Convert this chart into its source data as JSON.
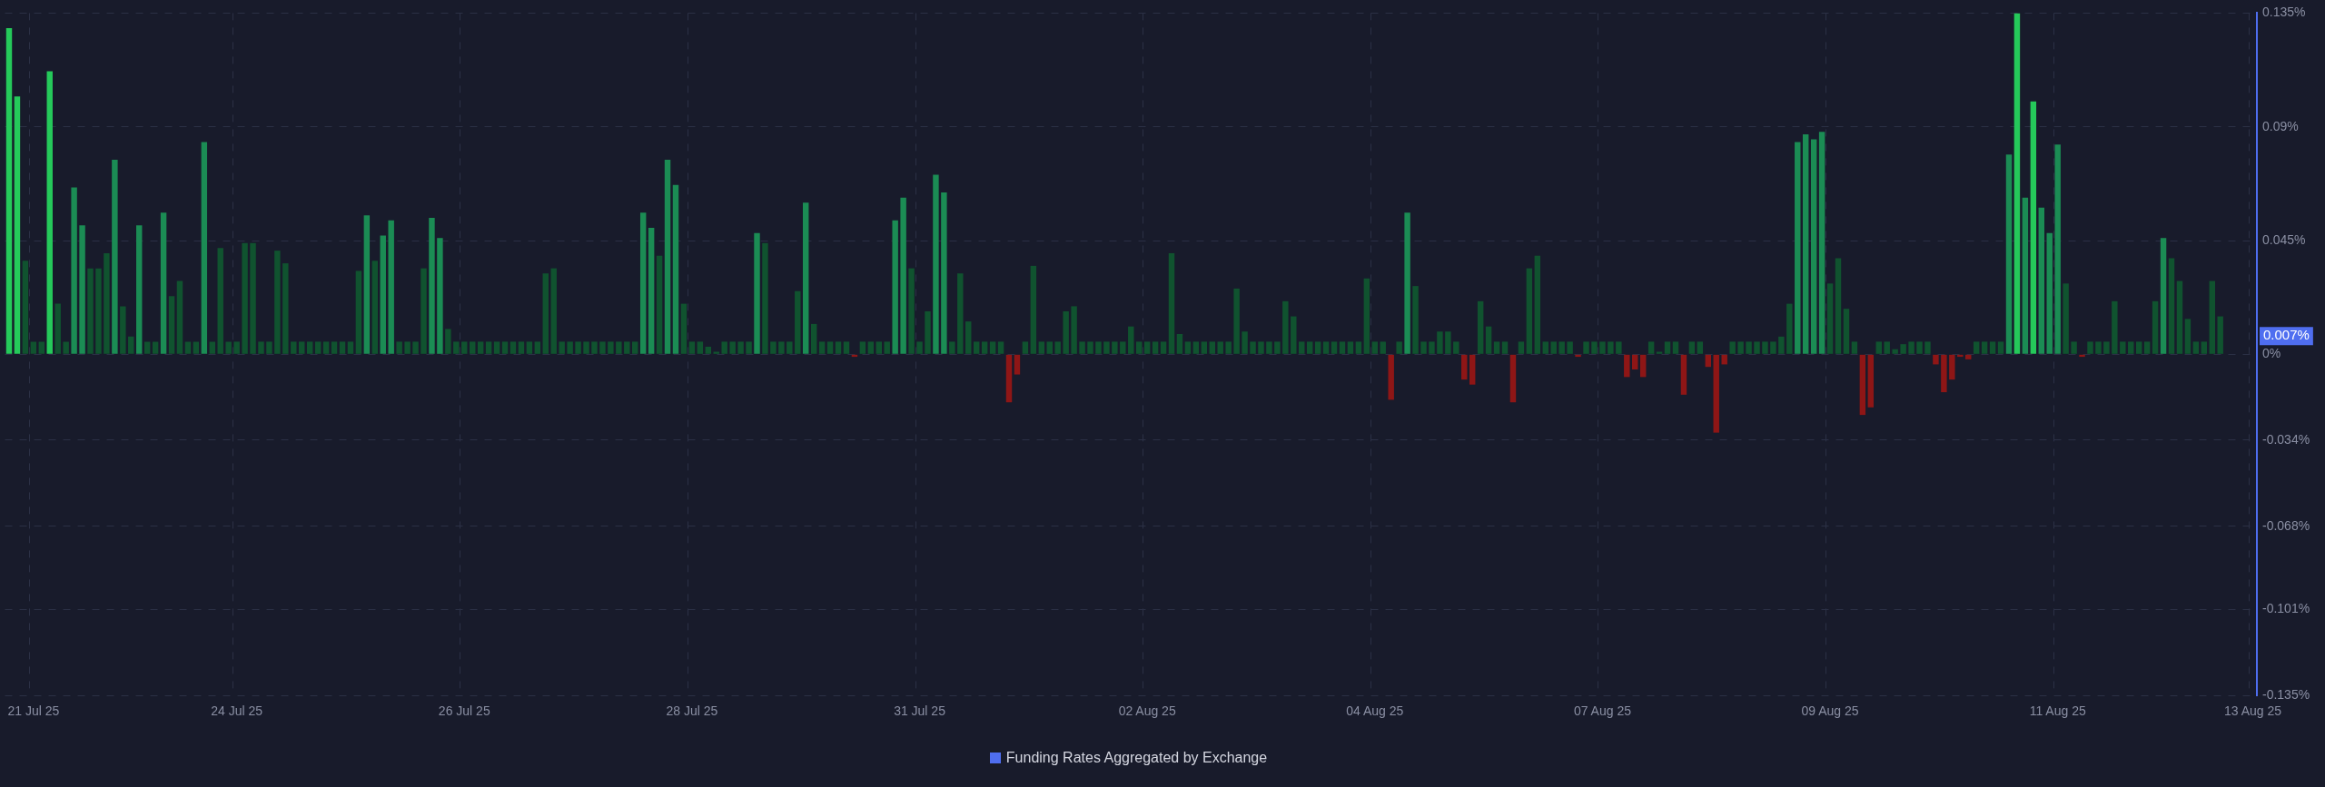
{
  "chart_data": {
    "type": "bar",
    "categories": [
      null,
      null,
      null,
      "21 Jul 25",
      null,
      null,
      null,
      null,
      null,
      null,
      null,
      null,
      null,
      null,
      null,
      null,
      null,
      null,
      null,
      null,
      null,
      null,
      null,
      null,
      null,
      null,
      null,
      null,
      "24 Jul 25",
      null,
      null,
      null,
      null,
      null,
      null,
      null,
      null,
      null,
      null,
      null,
      null,
      null,
      null,
      null,
      null,
      null,
      null,
      null,
      null,
      null,
      null,
      null,
      null,
      null,
      null,
      null,
      "26 Jul 25",
      null,
      null,
      null,
      null,
      null,
      null,
      null,
      null,
      null,
      null,
      null,
      null,
      null,
      null,
      null,
      null,
      null,
      null,
      null,
      null,
      null,
      null,
      null,
      null,
      null,
      null,
      null,
      "28 Jul 25",
      null,
      null,
      null,
      null,
      null,
      null,
      null,
      null,
      null,
      null,
      null,
      null,
      null,
      null,
      null,
      null,
      null,
      null,
      null,
      null,
      null,
      null,
      null,
      null,
      null,
      null,
      null,
      "31 Jul 25",
      null,
      null,
      null,
      null,
      null,
      null,
      null,
      null,
      null,
      null,
      null,
      null,
      null,
      null,
      null,
      null,
      null,
      null,
      null,
      null,
      null,
      null,
      null,
      null,
      null,
      null,
      null,
      "02 Aug 25",
      null,
      null,
      null,
      null,
      null,
      null,
      null,
      null,
      null,
      null,
      null,
      null,
      null,
      null,
      null,
      null,
      null,
      null,
      null,
      null,
      null,
      null,
      null,
      null,
      null,
      null,
      null,
      "04 Aug 25",
      null,
      null,
      null,
      null,
      null,
      null,
      null,
      null,
      null,
      null,
      null,
      null,
      null,
      null,
      null,
      null,
      null,
      null,
      null,
      null,
      null,
      null,
      null,
      null,
      null,
      null,
      null,
      "07 Aug 25",
      null,
      null,
      null,
      null,
      null,
      null,
      null,
      null,
      null,
      null,
      null,
      null,
      null,
      null,
      null,
      null,
      null,
      null,
      null,
      null,
      null,
      null,
      null,
      null,
      null,
      null,
      null,
      "09 Aug 25",
      null,
      null,
      null,
      null,
      null,
      null,
      null,
      null,
      null,
      null,
      null,
      null,
      null,
      null,
      null,
      null,
      null,
      null,
      null,
      null,
      null,
      null,
      null,
      null,
      null,
      null,
      null,
      "11 Aug 25",
      null,
      null,
      null,
      null,
      null,
      null,
      null,
      null,
      null,
      null,
      null,
      null,
      null,
      null,
      null,
      null,
      null,
      null,
      null,
      null,
      null,
      null,
      null,
      "13 Aug 25"
    ],
    "series": [
      {
        "name": "Funding Rates Aggregated by Exchange",
        "color": "#4f6ef0",
        "values": [
          0.129,
          0.102,
          0.037,
          0.005,
          0.005,
          0.112,
          0.02,
          0.005,
          0.066,
          0.051,
          0.034,
          0.034,
          0.04,
          0.077,
          0.019,
          0.007,
          0.051,
          0.005,
          0.005,
          0.056,
          0.023,
          0.029,
          0.005,
          0.005,
          0.084,
          0.005,
          0.042,
          0.005,
          0.005,
          0.044,
          0.044,
          0.005,
          0.005,
          0.041,
          0.036,
          0.005,
          0.005,
          0.005,
          0.005,
          0.005,
          0.005,
          0.005,
          0.005,
          0.033,
          0.055,
          0.037,
          0.047,
          0.053,
          0.005,
          0.005,
          0.005,
          0.034,
          0.054,
          0.046,
          0.01,
          0.005,
          0.005,
          0.005,
          0.005,
          0.005,
          0.005,
          0.005,
          0.005,
          0.005,
          0.005,
          0.005,
          0.032,
          0.034,
          0.005,
          0.005,
          0.005,
          0.005,
          0.005,
          0.005,
          0.005,
          0.005,
          0.005,
          0.005,
          0.056,
          0.05,
          0.039,
          0.077,
          0.067,
          0.02,
          0.005,
          0.005,
          0.003,
          0.001,
          0.005,
          0.005,
          0.005,
          0.005,
          0.048,
          0.044,
          0.005,
          0.005,
          0.005,
          0.025,
          0.06,
          0.012,
          0.005,
          0.005,
          0.005,
          0.005,
          -0.001,
          0.005,
          0.005,
          0.005,
          0.005,
          0.053,
          0.062,
          0.034,
          0.005,
          0.017,
          0.071,
          0.064,
          0.005,
          0.032,
          0.013,
          0.005,
          0.005,
          0.005,
          0.005,
          -0.019,
          -0.008,
          0.005,
          0.035,
          0.005,
          0.005,
          0.005,
          0.017,
          0.019,
          0.005,
          0.005,
          0.005,
          0.005,
          0.005,
          0.005,
          0.011,
          0.005,
          0.005,
          0.005,
          0.005,
          0.04,
          0.008,
          0.005,
          0.005,
          0.005,
          0.005,
          0.005,
          0.005,
          0.026,
          0.009,
          0.005,
          0.005,
          0.005,
          0.005,
          0.021,
          0.015,
          0.005,
          0.005,
          0.005,
          0.005,
          0.005,
          0.005,
          0.005,
          0.005,
          0.03,
          0.005,
          0.005,
          -0.018,
          0.005,
          0.056,
          0.027,
          0.005,
          0.005,
          0.009,
          0.009,
          0.005,
          -0.01,
          -0.012,
          0.021,
          0.011,
          0.005,
          0.005,
          -0.019,
          0.005,
          0.034,
          0.039,
          0.005,
          0.005,
          0.005,
          0.005,
          -0.001,
          0.005,
          0.005,
          0.005,
          0.005,
          0.005,
          -0.009,
          -0.006,
          -0.009,
          0.005,
          0.001,
          0.005,
          0.005,
          -0.016,
          0.005,
          0.005,
          -0.005,
          -0.031,
          -0.004,
          0.005,
          0.005,
          0.005,
          0.005,
          0.005,
          0.005,
          0.007,
          0.02,
          0.084,
          0.087,
          0.085,
          0.088,
          0.028,
          0.038,
          0.018,
          0.005,
          -0.024,
          -0.021,
          0.005,
          0.005,
          0.002,
          0.004,
          0.005,
          0.005,
          0.005,
          -0.004,
          -0.015,
          -0.01,
          -0.001,
          -0.002,
          0.005,
          0.005,
          0.005,
          0.005,
          0.079,
          0.135,
          0.062,
          0.1,
          0.058,
          0.048,
          0.083,
          0.028,
          0.005,
          -0.001,
          0.005,
          0.005,
          0.005,
          0.021,
          0.005,
          0.005,
          0.005,
          0.005,
          0.021,
          0.046,
          0.038,
          0.029,
          0.014,
          0.005,
          0.005,
          0.029,
          0.015,
          null,
          null,
          null,
          null
        ],
        "colors": [
          "#25c95a",
          "#25c95a",
          "#10532f",
          "#10532f",
          "#10532f",
          "#25c95a",
          "#10532f",
          "#10532f",
          "#1b8c54",
          "#1b8c54",
          "#10532f",
          "#10532f",
          "#10532f",
          "#1b8c54",
          "#10532f",
          "#10532f",
          "#1b8c54",
          "#10532f",
          "#10532f",
          "#1b8c54",
          "#10532f",
          "#10532f",
          "#10532f",
          "#10532f",
          "#1b8c54",
          "#10532f",
          "#10532f",
          "#10532f",
          "#10532f",
          "#10532f",
          "#10532f",
          "#10532f",
          "#10532f",
          "#10532f",
          "#10532f",
          "#10532f",
          "#10532f",
          "#10532f",
          "#10532f",
          "#10532f",
          "#10532f",
          "#10532f",
          "#10532f",
          "#10532f",
          "#1b8c54",
          "#10532f",
          "#1b8c54",
          "#1b8c54",
          "#10532f",
          "#10532f",
          "#10532f",
          "#10532f",
          "#1b8c54",
          "#1b8c54",
          "#10532f",
          "#10532f",
          "#10532f",
          "#10532f",
          "#10532f",
          "#10532f",
          "#10532f",
          "#10532f",
          "#10532f",
          "#10532f",
          "#10532f",
          "#10532f",
          "#10532f",
          "#10532f",
          "#10532f",
          "#10532f",
          "#10532f",
          "#10532f",
          "#10532f",
          "#10532f",
          "#10532f",
          "#10532f",
          "#10532f",
          "#10532f",
          "#1b8c54",
          "#1b8c54",
          "#10532f",
          "#1b8c54",
          "#1b8c54",
          "#10532f",
          "#10532f",
          "#10532f",
          "#10532f",
          "#10532f",
          "#10532f",
          "#10532f",
          "#10532f",
          "#10532f",
          "#1b8c54",
          "#10532f",
          "#10532f",
          "#10532f",
          "#10532f",
          "#10532f",
          "#1b8c54",
          "#10532f",
          "#10532f",
          "#10532f",
          "#10532f",
          "#10532f",
          "#8e1616",
          "#10532f",
          "#10532f",
          "#10532f",
          "#10532f",
          "#1b8c54",
          "#1b8c54",
          "#10532f",
          "#10532f",
          "#10532f",
          "#1b8c54",
          "#1b8c54",
          "#10532f",
          "#10532f",
          "#10532f",
          "#10532f",
          "#10532f",
          "#10532f",
          "#10532f",
          "#8e1616",
          "#8e1616",
          "#10532f",
          "#10532f",
          "#10532f",
          "#10532f",
          "#10532f",
          "#10532f",
          "#10532f",
          "#10532f",
          "#10532f",
          "#10532f",
          "#10532f",
          "#10532f",
          "#10532f",
          "#10532f",
          "#10532f",
          "#10532f",
          "#10532f",
          "#10532f",
          "#10532f",
          "#10532f",
          "#10532f",
          "#10532f",
          "#10532f",
          "#10532f",
          "#10532f",
          "#10532f",
          "#10532f",
          "#10532f",
          "#10532f",
          "#10532f",
          "#10532f",
          "#10532f",
          "#10532f",
          "#10532f",
          "#10532f",
          "#10532f",
          "#10532f",
          "#10532f",
          "#10532f",
          "#10532f",
          "#10532f",
          "#10532f",
          "#10532f",
          "#10532f",
          "#10532f",
          "#8e1616",
          "#10532f",
          "#1b8c54",
          "#10532f",
          "#10532f",
          "#10532f",
          "#10532f",
          "#10532f",
          "#10532f",
          "#8e1616",
          "#8e1616",
          "#10532f",
          "#10532f",
          "#10532f",
          "#10532f",
          "#8e1616",
          "#10532f",
          "#10532f",
          "#10532f",
          "#10532f",
          "#10532f",
          "#10532f",
          "#10532f",
          "#8e1616",
          "#10532f",
          "#10532f",
          "#10532f",
          "#10532f",
          "#10532f",
          "#8e1616",
          "#8e1616",
          "#8e1616",
          "#10532f",
          "#10532f",
          "#10532f",
          "#10532f",
          "#8e1616",
          "#10532f",
          "#10532f",
          "#8e1616",
          "#8e1616",
          "#8e1616",
          "#10532f",
          "#10532f",
          "#10532f",
          "#10532f",
          "#10532f",
          "#10532f",
          "#10532f",
          "#10532f",
          "#1b8c54",
          "#1b8c54",
          "#1b8c54",
          "#1b8c54",
          "#10532f",
          "#10532f",
          "#10532f",
          "#10532f",
          "#8e1616",
          "#8e1616",
          "#10532f",
          "#10532f",
          "#10532f",
          "#10532f",
          "#10532f",
          "#10532f",
          "#10532f",
          "#8e1616",
          "#8e1616",
          "#8e1616",
          "#8e1616",
          "#8e1616",
          "#10532f",
          "#10532f",
          "#10532f",
          "#10532f",
          "#1b8c54",
          "#25c95a",
          "#1b8c54",
          "#25c95a",
          "#1b8c54",
          "#1b8c54",
          "#1b8c54",
          "#10532f",
          "#10532f",
          "#8e1616",
          "#10532f",
          "#10532f",
          "#10532f",
          "#10532f",
          "#10532f",
          "#10532f",
          "#10532f",
          "#10532f",
          "#10532f",
          "#1b8c54",
          "#10532f",
          "#10532f",
          "#10532f",
          "#10532f",
          "#10532f",
          "#10532f",
          "#10532f",
          null,
          null,
          null,
          null
        ]
      }
    ],
    "ylim": [
      -0.135,
      0.135
    ],
    "yticks": [
      {
        "value": 0.135,
        "label": "0.135%"
      },
      {
        "value": 0.09,
        "label": "0.09%"
      },
      {
        "value": 0.045,
        "label": "0.045%"
      },
      {
        "value": 0,
        "label": "0%"
      },
      {
        "value": -0.034,
        "label": "-0.034%"
      },
      {
        "value": -0.068,
        "label": "-0.068%"
      },
      {
        "value": -0.101,
        "label": "-0.101%"
      },
      {
        "value": -0.135,
        "label": "-0.135%"
      }
    ],
    "annotations": [
      "0.007%"
    ],
    "grid": true,
    "legend": "bottom"
  }
}
